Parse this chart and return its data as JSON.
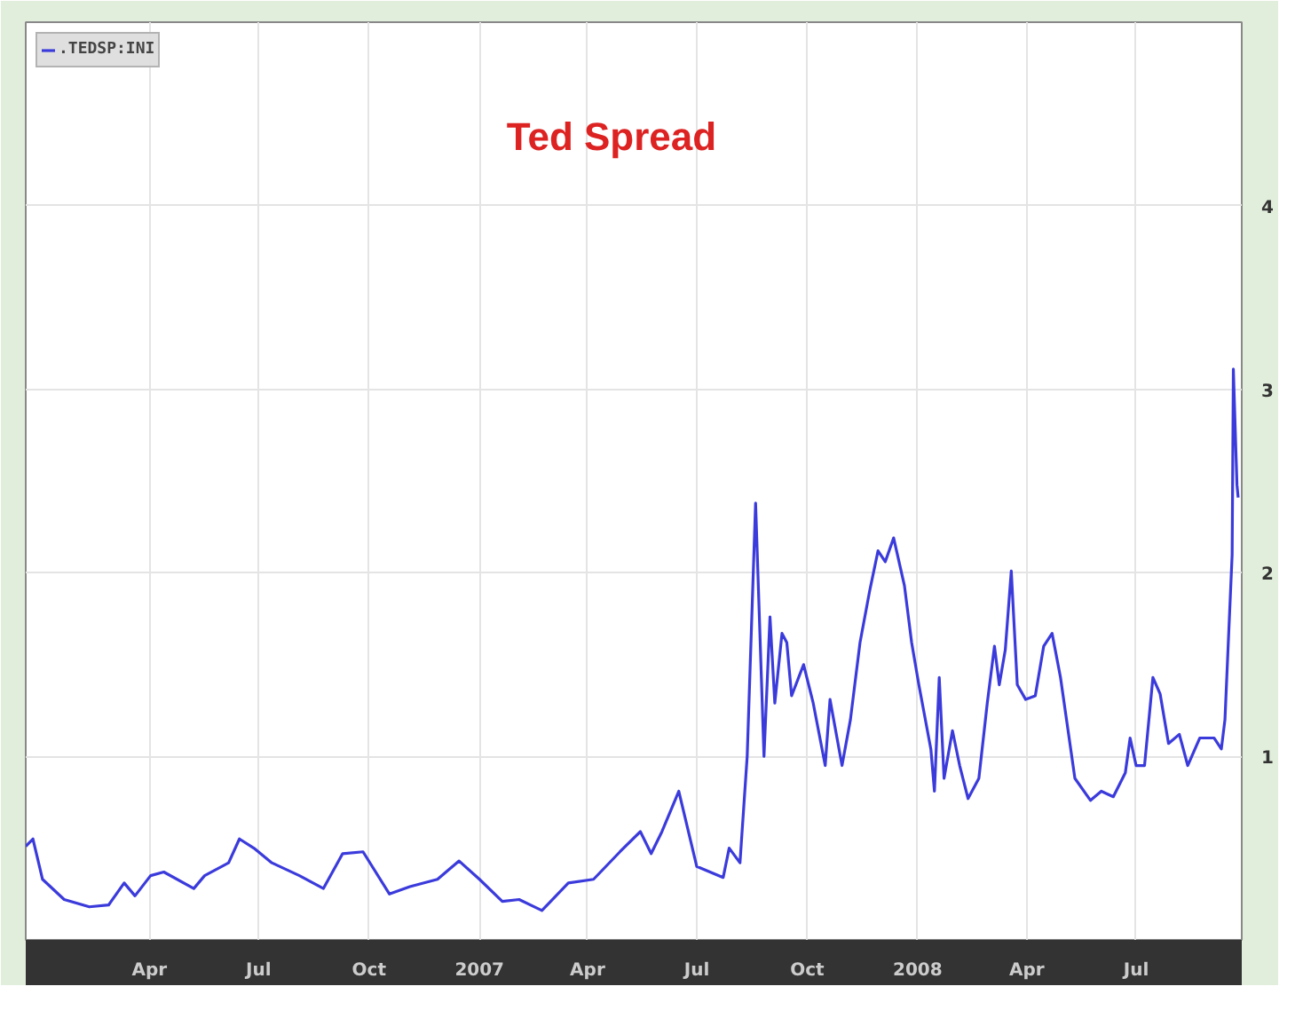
{
  "chart_data": {
    "type": "line",
    "title": "Ted Spread",
    "xlim": [
      "2005-12-19",
      "2008-09-27"
    ],
    "ylim": [
      0,
      5
    ],
    "yticks": [
      1,
      2,
      3,
      4
    ],
    "xticks": [
      {
        "value": "2006-04-01",
        "label": "Apr"
      },
      {
        "value": "2006-07-01",
        "label": "Jul"
      },
      {
        "value": "2006-10-01",
        "label": "Oct"
      },
      {
        "value": "2007-01-01",
        "label": "2007"
      },
      {
        "value": "2007-04-01",
        "label": "Apr"
      },
      {
        "value": "2007-07-01",
        "label": "Jul"
      },
      {
        "value": "2007-10-01",
        "label": "Oct"
      },
      {
        "value": "2008-01-01",
        "label": "2008"
      },
      {
        "value": "2008-04-01",
        "label": "Apr"
      },
      {
        "value": "2008-07-01",
        "label": "Jul"
      }
    ],
    "grid": true,
    "legend": "top left",
    "series": [
      {
        "name": ".TEDSP:INI",
        "color": "#3b3bdc",
        "x": [
          "2005-12-19",
          "2005-12-25",
          "2006-01-02",
          "2006-01-20",
          "2006-02-10",
          "2006-02-26",
          "2006-03-11",
          "2006-03-20",
          "2006-04-02",
          "2006-04-13",
          "2006-05-08",
          "2006-05-17",
          "2006-06-06",
          "2006-06-15",
          "2006-06-27",
          "2006-07-12",
          "2006-08-04",
          "2006-08-24",
          "2006-09-09",
          "2006-09-26",
          "2006-10-18",
          "2006-11-04",
          "2006-11-27",
          "2006-12-15",
          "2007-01-01",
          "2007-01-20",
          "2007-02-03",
          "2007-02-22",
          "2007-03-16",
          "2007-04-06",
          "2007-04-28",
          "2007-05-15",
          "2007-05-24",
          "2007-06-02",
          "2007-06-16",
          "2007-07-01",
          "2007-07-23",
          "2007-07-28",
          "2007-08-06",
          "2007-08-12",
          "2007-08-19",
          "2007-08-26",
          "2007-08-31",
          "2007-09-04",
          "2007-09-10",
          "2007-09-14",
          "2007-09-18",
          "2007-09-28",
          "2007-10-06",
          "2007-10-16",
          "2007-10-20",
          "2007-10-30",
          "2007-11-06",
          "2007-11-14",
          "2007-11-22",
          "2007-11-29",
          "2007-12-05",
          "2007-12-12",
          "2007-12-21",
          "2007-12-27",
          "2008-01-02",
          "2008-01-12",
          "2008-01-15",
          "2008-01-19",
          "2008-01-23",
          "2008-01-30",
          "2008-02-05",
          "2008-02-12",
          "2008-02-21",
          "2008-02-28",
          "2008-03-05",
          "2008-03-09",
          "2008-03-14",
          "2008-03-19",
          "2008-03-24",
          "2008-03-31",
          "2008-04-08",
          "2008-04-15",
          "2008-04-22",
          "2008-04-29",
          "2008-05-11",
          "2008-05-24",
          "2008-06-02",
          "2008-06-12",
          "2008-06-22",
          "2008-06-26",
          "2008-07-01",
          "2008-07-08",
          "2008-07-15",
          "2008-07-21",
          "2008-07-28",
          "2008-08-06",
          "2008-08-13",
          "2008-08-23",
          "2008-09-04",
          "2008-09-10",
          "2008-09-13",
          "2008-09-19",
          "2008-09-20",
          "2008-09-23",
          "2008-09-24"
        ],
        "values": [
          0.51,
          0.55,
          0.33,
          0.22,
          0.18,
          0.19,
          0.31,
          0.24,
          0.35,
          0.37,
          0.28,
          0.35,
          0.42,
          0.55,
          0.5,
          0.42,
          0.35,
          0.28,
          0.47,
          0.48,
          0.25,
          0.29,
          0.33,
          0.43,
          0.33,
          0.21,
          0.22,
          0.16,
          0.31,
          0.33,
          0.48,
          0.59,
          0.47,
          0.59,
          0.81,
          0.4,
          0.34,
          0.5,
          0.42,
          1.0,
          2.38,
          1.0,
          1.76,
          1.29,
          1.67,
          1.62,
          1.33,
          1.5,
          1.29,
          0.95,
          1.31,
          0.95,
          1.2,
          1.62,
          1.9,
          2.12,
          2.06,
          2.19,
          1.93,
          1.62,
          1.39,
          1.04,
          0.81,
          1.43,
          0.88,
          1.14,
          0.95,
          0.77,
          0.88,
          1.29,
          1.6,
          1.39,
          1.58,
          2.01,
          1.39,
          1.31,
          1.33,
          1.6,
          1.67,
          1.43,
          0.88,
          0.76,
          0.81,
          0.78,
          0.91,
          1.1,
          0.95,
          0.95,
          1.43,
          1.34,
          1.07,
          1.12,
          0.95,
          1.1,
          1.1,
          1.04,
          1.2,
          2.1,
          3.11,
          2.48,
          2.41
        ]
      }
    ]
  }
}
